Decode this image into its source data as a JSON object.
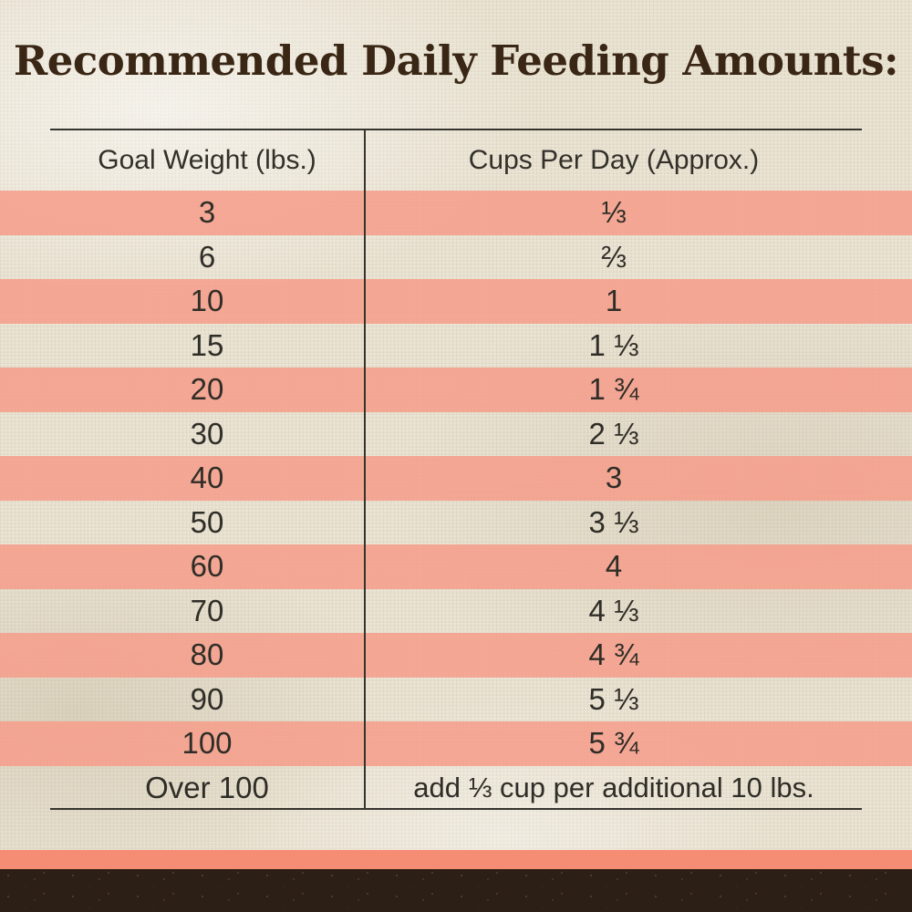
{
  "title": "Recommended Daily Feeding Amounts:",
  "colors": {
    "background": "#e9e2d1",
    "stripe": "#f59e8b",
    "accent_bar": "#f58d74",
    "footer_band": "#2c1f15",
    "title_text": "#3a2614",
    "body_text": "#2f2d27",
    "border": "#35332d"
  },
  "table": {
    "header": {
      "col1": "Goal Weight (lbs.)",
      "col2": "Cups Per Day (Approx.)"
    },
    "rows": [
      {
        "weight": "3",
        "cups": "⅓"
      },
      {
        "weight": "6",
        "cups": "⅔"
      },
      {
        "weight": "10",
        "cups": "1"
      },
      {
        "weight": "15",
        "cups": "1 ⅓"
      },
      {
        "weight": "20",
        "cups": "1 ¾"
      },
      {
        "weight": "30",
        "cups": "2 ⅓"
      },
      {
        "weight": "40",
        "cups": "3"
      },
      {
        "weight": "50",
        "cups": "3 ⅓"
      },
      {
        "weight": "60",
        "cups": "4"
      },
      {
        "weight": "70",
        "cups": "4 ⅓"
      },
      {
        "weight": "80",
        "cups": "4 ¾"
      },
      {
        "weight": "90",
        "cups": "5 ⅓"
      },
      {
        "weight": "100",
        "cups": "5 ¾"
      },
      {
        "weight": "Over 100",
        "cups": "add ⅓ cup per additional 10 lbs."
      }
    ]
  },
  "chart_data": {
    "type": "table",
    "title": "Recommended Daily Feeding Amounts:",
    "columns": [
      "Goal Weight (lbs.)",
      "Cups Per Day (Approx.)"
    ],
    "rows": [
      [
        "3",
        "⅓"
      ],
      [
        "6",
        "⅔"
      ],
      [
        "10",
        "1"
      ],
      [
        "15",
        "1 ⅓"
      ],
      [
        "20",
        "1 ¾"
      ],
      [
        "30",
        "2 ⅓"
      ],
      [
        "40",
        "3"
      ],
      [
        "50",
        "3 ⅓"
      ],
      [
        "60",
        "4"
      ],
      [
        "70",
        "4 ⅓"
      ],
      [
        "80",
        "4 ¾"
      ],
      [
        "90",
        "5 ⅓"
      ],
      [
        "100",
        "5 ¾"
      ],
      [
        "Over 100",
        "add ⅓ cup per additional 10 lbs."
      ]
    ],
    "notes": "Alternating rows highlighted with salmon stripes starting at first data row; striped rows span full image width."
  }
}
